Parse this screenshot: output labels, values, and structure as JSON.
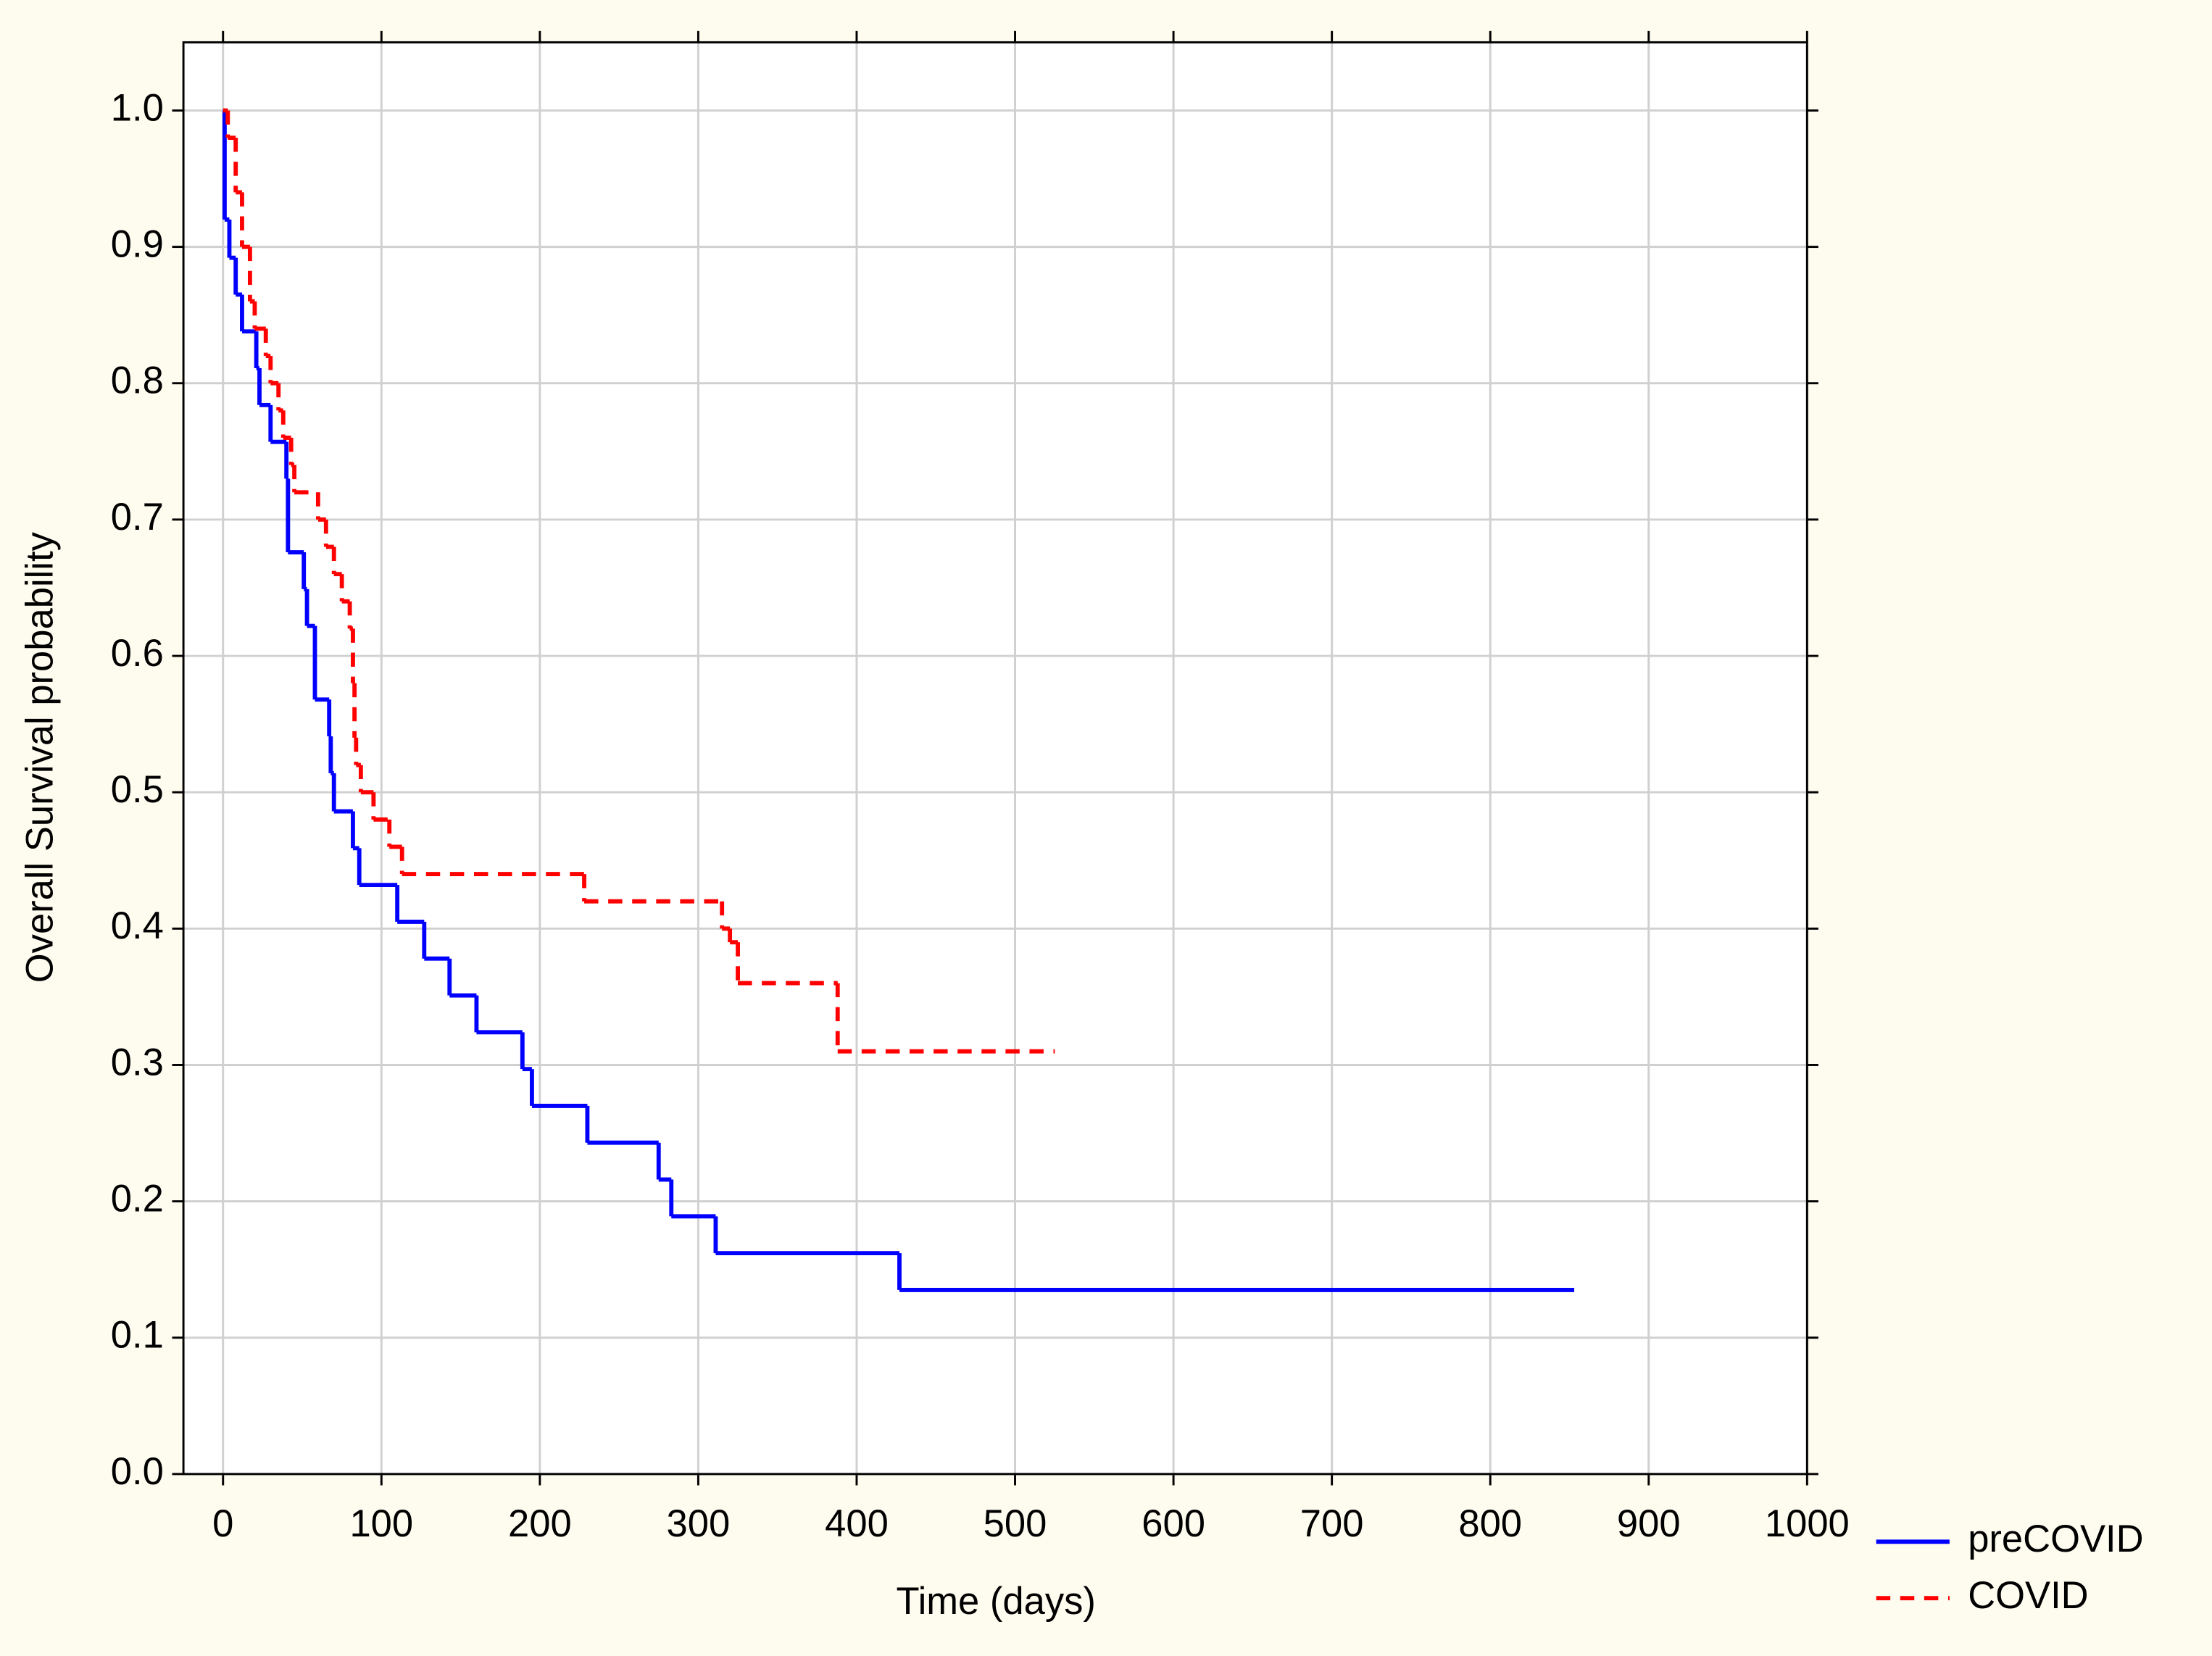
{
  "chart_data": {
    "type": "step",
    "xlabel": "Time (days)",
    "ylabel": "Overall Survival probability",
    "xlim": [
      -25,
      1000
    ],
    "ylim": [
      0,
      1.05
    ],
    "xticks": [
      0,
      100,
      200,
      300,
      400,
      500,
      600,
      700,
      800,
      900,
      1000
    ],
    "yticks": [
      {
        "value": 0,
        "label": "0.0"
      },
      0.1,
      0.2,
      0.3,
      0.4,
      0.5,
      0.6,
      0.7,
      0.8,
      0.9,
      {
        "value": 1,
        "label": "1.0"
      }
    ],
    "grid": true,
    "series": [
      {
        "name": "preCOVID",
        "color": "#0000ff",
        "dashed": false,
        "x": [
          0,
          1,
          4,
          8,
          12,
          21,
          23,
          30,
          40,
          41,
          51,
          53,
          58,
          67,
          68,
          70,
          82,
          86,
          110,
          127,
          143,
          160,
          189,
          195,
          230,
          275,
          283,
          311,
          427,
          853
        ],
        "values": [
          1.0,
          0.92,
          0.892,
          0.865,
          0.838,
          0.811,
          0.784,
          0.757,
          0.73,
          0.676,
          0.649,
          0.622,
          0.568,
          0.541,
          0.514,
          0.486,
          0.459,
          0.432,
          0.405,
          0.378,
          0.351,
          0.324,
          0.297,
          0.27,
          0.243,
          0.216,
          0.189,
          0.162,
          0.135,
          0.135
        ]
      },
      {
        "name": "COVID",
        "color": "#ff0000",
        "dashed": true,
        "x": [
          0,
          3,
          8,
          12,
          17,
          20,
          27,
          30,
          35,
          38,
          43,
          45,
          60,
          65,
          70,
          75,
          80,
          82,
          83,
          84,
          87,
          95,
          105,
          113,
          228,
          315,
          320,
          325,
          388,
          525
        ],
        "values": [
          1.0,
          0.98,
          0.94,
          0.9,
          0.86,
          0.84,
          0.82,
          0.8,
          0.78,
          0.76,
          0.74,
          0.72,
          0.7,
          0.68,
          0.66,
          0.64,
          0.62,
          0.58,
          0.54,
          0.52,
          0.5,
          0.48,
          0.46,
          0.44,
          0.42,
          0.4,
          0.39,
          0.36,
          0.31,
          0.31
        ]
      }
    ]
  }
}
